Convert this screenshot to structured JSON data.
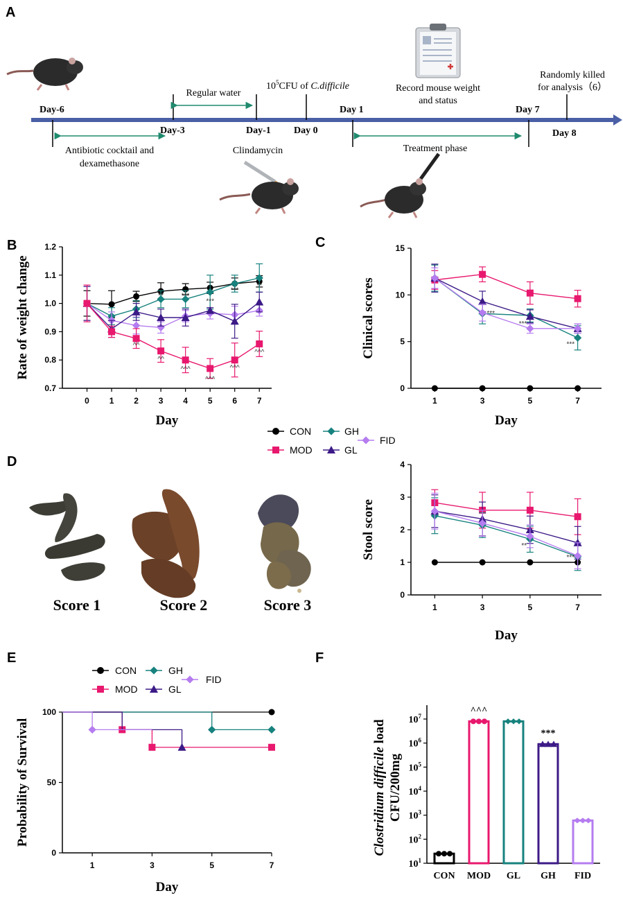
{
  "panel_letters": {
    "A": "A",
    "B": "B",
    "C": "C",
    "D": "D",
    "E": "E",
    "F": "F"
  },
  "colors": {
    "CON": "#000000",
    "MOD": "#e8186e",
    "GH": "#17827e",
    "GL": "#3c1a87",
    "FID": "#b57cf0",
    "timeline": "#4a5fa5",
    "arrow": "#1f8a6e"
  },
  "timeline": {
    "days": {
      "d_6": "Day-6",
      "d_3": "Day-3",
      "d_1": "Day-1",
      "d0": "Day 0",
      "d1": "Day 1",
      "d7": "Day 7",
      "d8": "Day 8"
    },
    "antibiotic_1": "Antibiotic cocktail and",
    "antibiotic_2": "dexamethasone",
    "regular_water": "Regular water",
    "cfu_prefix": "10",
    "cfu_sup": "5",
    "cfu_mid": "CFU of ",
    "cfu_species": "C.difficile",
    "clindamycin": "Clindamycin",
    "record_1": "Record mouse weight",
    "record_2": "and status",
    "treatment": "Treatment phase",
    "killed_1": "Randomly killed",
    "killed_2": "for analysis（6）"
  },
  "legend": {
    "CON": "CON",
    "MOD": "MOD",
    "GH": "GH",
    "GL": "GL",
    "FID": "FID"
  },
  "stool_images": {
    "s1": "Score 1",
    "s2": "Score 2",
    "s3": "Score 3"
  },
  "chart_data": [
    {
      "id": "B",
      "type": "line",
      "title": "",
      "xlabel": "Day",
      "ylabel": "Rate of weight change",
      "x": [
        0,
        1,
        2,
        3,
        4,
        5,
        6,
        7
      ],
      "xticks": [
        "0",
        "1",
        "2",
        "3",
        "4",
        "5",
        "6",
        "7"
      ],
      "ylim": [
        0.7,
        1.2
      ],
      "yticks": [
        "0.7",
        "0.8",
        "0.9",
        "1.0",
        "1.1",
        "1.2"
      ],
      "series": [
        {
          "name": "CON",
          "values": [
            1.0,
            0.997,
            1.025,
            1.043,
            1.05,
            1.055,
            1.07,
            1.078
          ],
          "err": [
            0.045,
            0.048,
            0.018,
            0.03,
            0.02,
            0.02,
            0.02,
            0.02
          ]
        },
        {
          "name": "GH",
          "values": [
            1.0,
            0.955,
            0.98,
            1.015,
            1.015,
            1.04,
            1.07,
            1.09
          ],
          "err": [
            0.06,
            0.03,
            0.03,
            0.03,
            0.03,
            0.06,
            0.03,
            0.05
          ]
        },
        {
          "name": "FID",
          "values": [
            1.0,
            0.94,
            0.922,
            0.915,
            0.955,
            0.965,
            0.96,
            0.975
          ],
          "err": [
            0.06,
            0.03,
            0.03,
            0.02,
            0.02,
            0.02,
            0.03,
            0.02
          ]
        },
        {
          "name": "GL",
          "values": [
            1.0,
            0.91,
            0.97,
            0.95,
            0.95,
            0.975,
            0.937,
            1.005
          ],
          "err": [
            0.06,
            0.03,
            0.03,
            0.03,
            0.03,
            0.01,
            0.06,
            0.035
          ]
        },
        {
          "name": "MOD",
          "values": [
            1.0,
            0.9,
            0.876,
            0.832,
            0.8,
            0.77,
            0.8,
            0.857
          ],
          "err": [
            0.065,
            0.02,
            0.035,
            0.04,
            0.045,
            0.035,
            0.06,
            0.045
          ]
        }
      ],
      "annotations": [
        {
          "x": 2,
          "y": 1.0,
          "text": "*"
        },
        {
          "x": 3,
          "y": 1.02,
          "text": "**"
        },
        {
          "x": 4,
          "y": 1.02,
          "text": "***"
        },
        {
          "x": 5,
          "y": 1.0,
          "text": "***"
        },
        {
          "x": 6,
          "y": 1.04,
          "text": "***"
        },
        {
          "x": 7,
          "y": 1.055,
          "text": "**"
        },
        {
          "x": 2,
          "y": 0.845,
          "text": "^^"
        },
        {
          "x": 3,
          "y": 0.795,
          "text": "^^"
        },
        {
          "x": 4,
          "y": 0.76,
          "text": "^^^"
        },
        {
          "x": 5,
          "y": 0.725,
          "text": "^^^"
        },
        {
          "x": 6,
          "y": 0.765,
          "text": "^^^"
        },
        {
          "x": 7,
          "y": 0.82,
          "text": "^^^"
        }
      ]
    },
    {
      "id": "C",
      "type": "line",
      "title": "",
      "xlabel": "Day",
      "ylabel": "Clinical scores",
      "x": [
        1,
        3,
        5,
        7
      ],
      "xticks": [
        "1",
        "3",
        "5",
        "7"
      ],
      "ylim": [
        0,
        15
      ],
      "yticks": [
        "0",
        "5",
        "10",
        "15"
      ],
      "series": [
        {
          "name": "CON",
          "values": [
            0,
            0,
            0,
            0
          ],
          "err": [
            0,
            0,
            0,
            0
          ]
        },
        {
          "name": "MOD",
          "values": [
            11.6,
            12.2,
            10.2,
            9.6
          ],
          "err": [
            1.0,
            0.8,
            1.2,
            0.9
          ]
        },
        {
          "name": "GH",
          "values": [
            11.8,
            8.0,
            7.8,
            5.4
          ],
          "err": [
            1.4,
            1.1,
            0.7,
            1.3
          ]
        },
        {
          "name": "GL",
          "values": [
            11.8,
            9.3,
            7.7,
            6.4
          ],
          "err": [
            1.5,
            1.1,
            0.7,
            0.5
          ]
        },
        {
          "name": "FID",
          "values": [
            11.8,
            8.1,
            6.4,
            6.4
          ],
          "err": [
            1.1,
            0.9,
            0.5,
            0.5
          ]
        }
      ],
      "annotations": [
        {
          "x": 3.35,
          "y": 7.8,
          "text": "***"
        },
        {
          "x": 4.7,
          "y": 6.7,
          "text": "***"
        },
        {
          "x": 6.7,
          "y": 4.5,
          "text": "***"
        }
      ]
    },
    {
      "id": "D",
      "type": "line",
      "title": "",
      "xlabel": "Day",
      "ylabel": "Stool score",
      "x": [
        1,
        3,
        5,
        7
      ],
      "xticks": [
        "1",
        "3",
        "5",
        "7"
      ],
      "ylim": [
        0,
        4
      ],
      "yticks": [
        "0",
        "1",
        "2",
        "3",
        "4"
      ],
      "series": [
        {
          "name": "CON",
          "values": [
            1,
            1,
            1,
            1
          ],
          "err": [
            0,
            0,
            0,
            0
          ]
        },
        {
          "name": "MOD",
          "values": [
            2.83,
            2.6,
            2.6,
            2.4
          ],
          "err": [
            0.4,
            0.55,
            0.55,
            0.55
          ]
        },
        {
          "name": "GH",
          "values": [
            2.43,
            2.14,
            1.71,
            1.17
          ],
          "err": [
            0.55,
            0.38,
            0.4,
            0.42
          ]
        },
        {
          "name": "GL",
          "values": [
            2.57,
            2.33,
            2.0,
            1.6
          ],
          "err": [
            0.5,
            0.52,
            0.42,
            0.5
          ]
        },
        {
          "name": "FID",
          "values": [
            2.57,
            2.2,
            1.8,
            1.2
          ],
          "err": [
            0.55,
            0.4,
            0.35,
            0.4
          ]
        }
      ],
      "annotations": [
        {
          "x": 4.75,
          "y": 1.45,
          "text": "**"
        },
        {
          "x": 6.7,
          "y": 1.08,
          "text": "***"
        }
      ]
    },
    {
      "id": "E",
      "type": "line",
      "title": "",
      "xlabel": "Day",
      "ylabel": "Probability of Survival",
      "xlim": [
        0,
        7
      ],
      "xticks": [
        "1",
        "3",
        "5",
        "7"
      ],
      "ylim": [
        0,
        100
      ],
      "yticks": [
        "0",
        "50",
        "100"
      ],
      "series": [
        {
          "name": "CON",
          "steps": [
            [
              0,
              100
            ],
            [
              7,
              100
            ]
          ],
          "marker_x": [
            7
          ],
          "marker_y": [
            100
          ]
        },
        {
          "name": "MOD",
          "steps": [
            [
              0,
              100
            ],
            [
              2,
              100
            ],
            [
              2,
              87.5
            ],
            [
              3,
              87.5
            ],
            [
              3,
              75
            ],
            [
              7,
              75
            ]
          ],
          "marker_x": [
            2,
            3,
            7
          ],
          "marker_y": [
            87.5,
            75,
            75
          ]
        },
        {
          "name": "GH",
          "steps": [
            [
              0,
              100
            ],
            [
              5,
              100
            ],
            [
              5,
              87.5
            ],
            [
              7,
              87.5
            ]
          ],
          "marker_x": [
            5,
            7
          ],
          "marker_y": [
            87.5,
            87.5
          ]
        },
        {
          "name": "GL",
          "steps": [
            [
              0,
              100
            ],
            [
              2,
              100
            ],
            [
              2,
              87.5
            ],
            [
              4,
              87.5
            ],
            [
              4,
              75
            ]
          ],
          "marker_x": [
            4
          ],
          "marker_y": [
            75
          ]
        },
        {
          "name": "FID",
          "steps": [
            [
              0,
              100
            ],
            [
              1,
              100
            ],
            [
              1,
              87.5
            ],
            [
              3,
              87.5
            ],
            [
              3,
              87.5
            ]
          ],
          "marker_x": [
            1
          ],
          "marker_y": [
            87.5
          ]
        }
      ]
    },
    {
      "id": "F",
      "type": "bar",
      "title": "",
      "xlabel": "",
      "ylabel_italic": "Clostridium difficile",
      "ylabel_rest": " load",
      "ylabel2": "CFU/200mg",
      "categories": [
        "CON",
        "MOD",
        "GL",
        "GH",
        "FID"
      ],
      "values": [
        25,
        8000000,
        8000000,
        900000,
        600
      ],
      "scale": "log",
      "ylim_exp": [
        1,
        7
      ],
      "ytick_base": "10",
      "ytick_exps": [
        "1",
        "2",
        "3",
        "4",
        "5",
        "6",
        "7"
      ],
      "bar_colors": [
        "#000000",
        "#e8186e",
        "#17827e",
        "#3c1a87",
        "#b57cf0"
      ],
      "annotations": [
        {
          "category": "MOD",
          "text": "^^^"
        },
        {
          "category": "GH",
          "text": "***"
        }
      ]
    }
  ]
}
